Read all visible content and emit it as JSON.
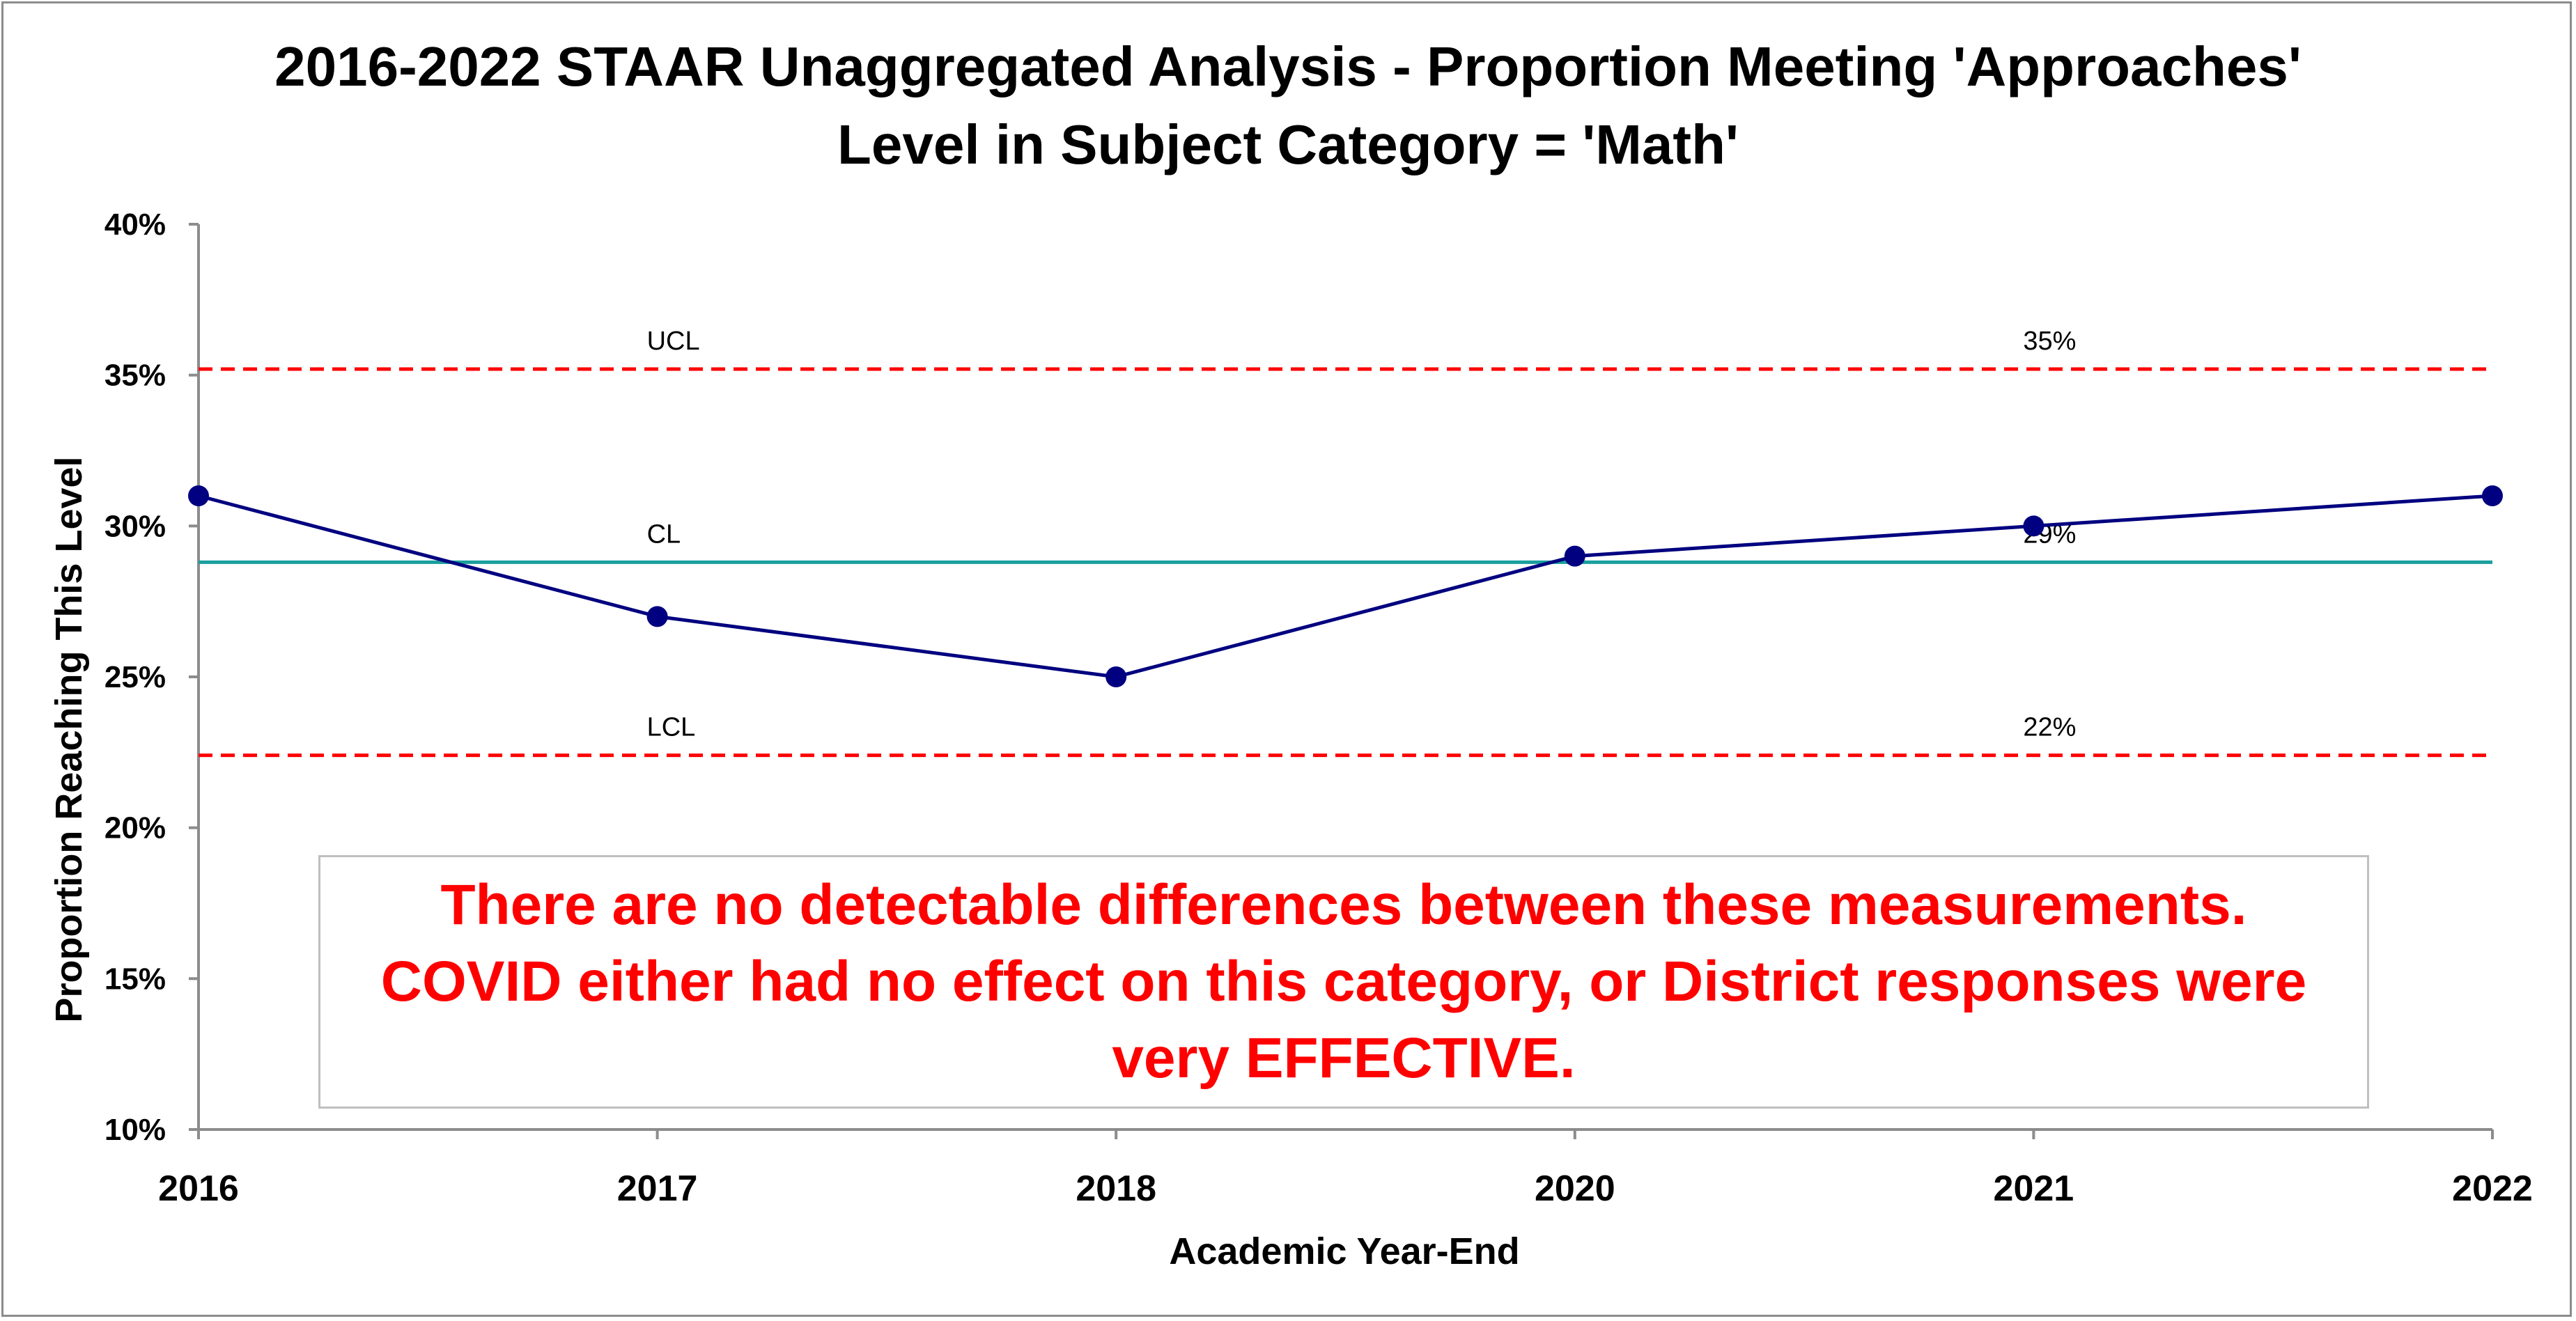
{
  "chart_data": {
    "type": "line",
    "title_lines": [
      "2016-2022 STAAR Unaggregated Analysis - Proportion Meeting 'Approaches'",
      "Level in  Subject Category = 'Math'"
    ],
    "xlabel": "Academic Year-End",
    "ylabel": "Proportion Reaching This Level",
    "categories": [
      "2016",
      "2017",
      "2018",
      "2020",
      "2021",
      "2022"
    ],
    "series": [
      {
        "values": [
          31,
          27,
          25,
          29,
          30,
          31
        ],
        "color": "#000080"
      }
    ],
    "ylim": [
      10,
      40
    ],
    "yticks": [
      10,
      15,
      20,
      25,
      30,
      35,
      40
    ],
    "ytick_labels": [
      "10%",
      "15%",
      "20%",
      "25%",
      "30%",
      "35%",
      "40%"
    ],
    "reference_lines": [
      {
        "name": "UCL",
        "value": 35.2,
        "value_label": "35%",
        "style": "dashed",
        "color": "#ff0000"
      },
      {
        "name": "CL",
        "value": 28.8,
        "value_label": "29%",
        "style": "solid",
        "color": "#1a9e9e"
      },
      {
        "name": "LCL",
        "value": 22.4,
        "value_label": "22%",
        "style": "dashed",
        "color": "#ff0000"
      }
    ],
    "grid": false,
    "legend": "none",
    "annotation": "There are no detectable differences between these measurements.  COVID either had no effect on this category, or District responses were very EFFECTIVE."
  }
}
